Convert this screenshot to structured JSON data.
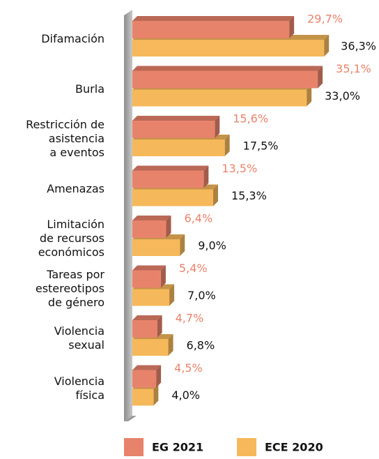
{
  "chart_data": {
    "type": "bar3d_horizontal",
    "categories": [
      "Difamación",
      "Burla",
      "Restricción de\nasistencia\na eventos",
      "Amenazas",
      "Limitación\nde recursos\neconómicos",
      "Tareas por\nestereotipos\nde género",
      "Violencia\nsexual",
      "Violencia\nfísica"
    ],
    "series": [
      {
        "name": "EG 2021",
        "color": "#e8836b",
        "values": [
          29.7,
          35.1,
          15.6,
          13.5,
          6.4,
          5.4,
          4.7,
          4.5
        ],
        "value_labels": [
          "29,7%",
          "35,1%",
          "15,6%",
          "13,5%",
          "6,4%",
          "5,4%",
          "4,7%",
          "4,5%"
        ]
      },
      {
        "name": "ECE 2020",
        "color": "#f5b85a",
        "values": [
          36.3,
          33.0,
          17.5,
          15.3,
          9.0,
          7.0,
          6.8,
          4.0
        ],
        "value_labels": [
          "36,3%",
          "33,0%",
          "17,5%",
          "15,3%",
          "9,0%",
          "7,0%",
          "6,8%",
          "4,0%"
        ]
      }
    ]
  }
}
